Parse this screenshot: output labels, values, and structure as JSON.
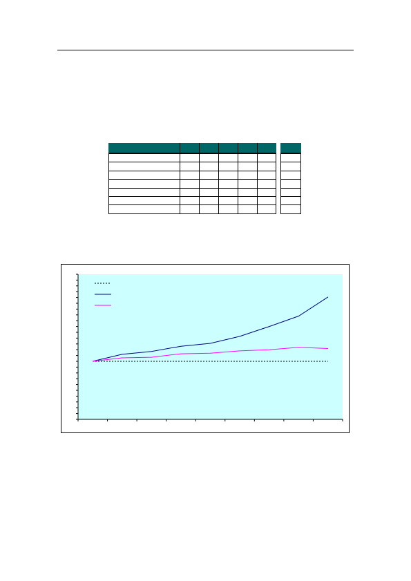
{
  "table": {
    "header_color": "#006666",
    "header_cells": [
      "",
      "",
      "",
      "",
      "",
      "",
      "",
      ""
    ],
    "rows": [
      [
        "",
        "",
        "",
        "",
        "",
        "",
        "",
        ""
      ],
      [
        "",
        "",
        "",
        "",
        "",
        "",
        "",
        ""
      ],
      [
        "",
        "",
        "",
        "",
        "",
        "",
        "",
        ""
      ],
      [
        "",
        "",
        "",
        "",
        "",
        "",
        "",
        ""
      ],
      [
        "",
        "",
        "",
        "",
        "",
        "",
        "",
        ""
      ],
      [
        "",
        "",
        "",
        "",
        "",
        "",
        "",
        ""
      ],
      [
        "",
        "",
        "",
        "",
        "",
        "",
        "",
        ""
      ]
    ]
  },
  "chart_data": {
    "type": "line",
    "title": "",
    "xlabel": "",
    "ylabel": "",
    "plot_background": "#ccffff",
    "grid": false,
    "legend_position": "top-left",
    "x": [
      0,
      1,
      2,
      3,
      4,
      5,
      6,
      7,
      8
    ],
    "ylim": [
      0,
      250
    ],
    "series": [
      {
        "name": "",
        "color": "#000000",
        "style": "dotted",
        "values": [
          100,
          100,
          100,
          100,
          100,
          100,
          100,
          100,
          100
        ]
      },
      {
        "name": "",
        "color": "#000080",
        "style": "solid",
        "values": [
          100,
          112,
          117,
          126,
          131,
          143,
          160,
          178,
          211
        ]
      },
      {
        "name": "",
        "color": "#ff00ff",
        "style": "solid",
        "values": [
          100,
          106,
          107,
          113,
          114,
          118,
          120,
          124,
          122
        ]
      }
    ]
  }
}
